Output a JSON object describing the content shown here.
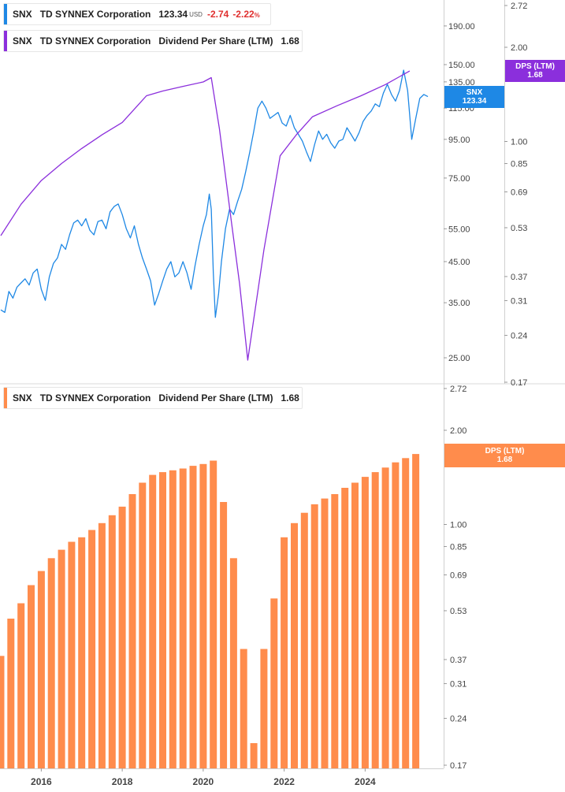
{
  "legend_top_price": {
    "ticker": "SNX",
    "company": "TD SYNNEX Corporation",
    "price": "123.34",
    "currency": "USD",
    "change": "-2.74",
    "change_pct": "-2.22",
    "pct_sign": "%",
    "color": "#1e88e5"
  },
  "legend_top_dps": {
    "ticker": "SNX",
    "company": "TD SYNNEX Corporation",
    "metric": "Dividend Per Share (LTM)",
    "value": "1.68",
    "color": "#8b2fdc"
  },
  "legend_bottom_dps": {
    "ticker": "SNX",
    "company": "TD SYNNEX Corporation",
    "metric": "Dividend Per Share (LTM)",
    "value": "1.68",
    "color": "#ff8c4c"
  },
  "tags": {
    "price_label": "SNX",
    "price_value": "123.34",
    "dps_top_label": "DPS (LTM)",
    "dps_top_value": "1.68",
    "dps_bottom_label": "DPS (LTM)",
    "dps_bottom_value": "1.68"
  },
  "chart_data": [
    {
      "type": "line",
      "scale": "log",
      "price_axis": {
        "ticks": [
          25.0,
          35.0,
          45.0,
          55.0,
          75.0,
          95.0,
          115.0,
          135.0,
          150.0,
          190.0
        ],
        "tick_labels": [
          "25.00",
          "35.00",
          "45.00",
          "55.00",
          "75.00",
          "95.00",
          "115.00",
          "135.00",
          "150.00",
          "190.00"
        ]
      },
      "dps_axis": {
        "ticks": [
          0.17,
          0.24,
          0.31,
          0.37,
          0.53,
          0.69,
          0.85,
          1.0,
          2.0,
          2.72
        ],
        "tick_labels": [
          "0.17",
          "0.24",
          "0.31",
          "0.37",
          "0.53",
          "0.69",
          "0.85",
          "1.00",
          "2.00",
          "2.72"
        ]
      },
      "series": [
        {
          "name": "SNX",
          "color": "#1e88e5",
          "points": [
            [
              2015.0,
              33.5
            ],
            [
              2015.1,
              33.0
            ],
            [
              2015.2,
              37.5
            ],
            [
              2015.3,
              36.0
            ],
            [
              2015.4,
              38.5
            ],
            [
              2015.5,
              39.5
            ],
            [
              2015.6,
              40.5
            ],
            [
              2015.7,
              39.0
            ],
            [
              2015.8,
              42.0
            ],
            [
              2015.9,
              43.0
            ],
            [
              2016.0,
              38.0
            ],
            [
              2016.1,
              35.5
            ],
            [
              2016.2,
              41.0
            ],
            [
              2016.3,
              44.5
            ],
            [
              2016.4,
              46.0
            ],
            [
              2016.5,
              50.0
            ],
            [
              2016.6,
              48.5
            ],
            [
              2016.7,
              53.0
            ],
            [
              2016.8,
              57.0
            ],
            [
              2016.9,
              58.0
            ],
            [
              2017.0,
              56.0
            ],
            [
              2017.1,
              58.5
            ],
            [
              2017.2,
              54.5
            ],
            [
              2017.3,
              53.0
            ],
            [
              2017.4,
              57.5
            ],
            [
              2017.5,
              58.0
            ],
            [
              2017.6,
              55.0
            ],
            [
              2017.7,
              61.0
            ],
            [
              2017.8,
              63.0
            ],
            [
              2017.9,
              64.0
            ],
            [
              2018.0,
              60.0
            ],
            [
              2018.1,
              55.0
            ],
            [
              2018.2,
              52.0
            ],
            [
              2018.3,
              56.0
            ],
            [
              2018.4,
              50.0
            ],
            [
              2018.5,
              46.0
            ],
            [
              2018.6,
              43.0
            ],
            [
              2018.7,
              40.0
            ],
            [
              2018.8,
              34.5
            ],
            [
              2018.9,
              37.0
            ],
            [
              2019.0,
              40.0
            ],
            [
              2019.1,
              43.0
            ],
            [
              2019.2,
              45.0
            ],
            [
              2019.3,
              41.0
            ],
            [
              2019.4,
              42.0
            ],
            [
              2019.5,
              45.0
            ],
            [
              2019.6,
              42.0
            ],
            [
              2019.7,
              38.0
            ],
            [
              2019.8,
              44.0
            ],
            [
              2019.9,
              50.0
            ],
            [
              2020.0,
              56.0
            ],
            [
              2020.08,
              60.0
            ],
            [
              2020.15,
              68.0
            ],
            [
              2020.2,
              62.0
            ],
            [
              2020.25,
              42.0
            ],
            [
              2020.3,
              32.0
            ],
            [
              2020.38,
              37.0
            ],
            [
              2020.45,
              45.0
            ],
            [
              2020.55,
              55.0
            ],
            [
              2020.65,
              62.0
            ],
            [
              2020.75,
              60.0
            ],
            [
              2020.85,
              65.0
            ],
            [
              2020.95,
              70.0
            ],
            [
              2021.05,
              78.0
            ],
            [
              2021.15,
              88.0
            ],
            [
              2021.25,
              100.0
            ],
            [
              2021.35,
              115.0
            ],
            [
              2021.45,
              120.0
            ],
            [
              2021.55,
              115.0
            ],
            [
              2021.65,
              108.0
            ],
            [
              2021.75,
              110.0
            ],
            [
              2021.85,
              112.0
            ],
            [
              2021.95,
              105.0
            ],
            [
              2022.05,
              103.0
            ],
            [
              2022.15,
              110.0
            ],
            [
              2022.25,
              102.0
            ],
            [
              2022.35,
              98.0
            ],
            [
              2022.45,
              94.0
            ],
            [
              2022.55,
              88.0
            ],
            [
              2022.65,
              83.0
            ],
            [
              2022.75,
              92.0
            ],
            [
              2022.85,
              100.0
            ],
            [
              2022.95,
              95.0
            ],
            [
              2023.05,
              98.0
            ],
            [
              2023.15,
              93.0
            ],
            [
              2023.25,
              90.0
            ],
            [
              2023.35,
              94.0
            ],
            [
              2023.45,
              95.0
            ],
            [
              2023.55,
              102.0
            ],
            [
              2023.65,
              98.0
            ],
            [
              2023.75,
              94.0
            ],
            [
              2023.85,
              99.0
            ],
            [
              2023.95,
              106.0
            ],
            [
              2024.05,
              110.0
            ],
            [
              2024.15,
              113.0
            ],
            [
              2024.25,
              118.0
            ],
            [
              2024.35,
              116.0
            ],
            [
              2024.45,
              126.0
            ],
            [
              2024.55,
              133.0
            ],
            [
              2024.65,
              125.0
            ],
            [
              2024.75,
              120.0
            ],
            [
              2024.85,
              128.0
            ],
            [
              2024.95,
              145.0
            ],
            [
              2025.05,
              128.0
            ],
            [
              2025.15,
              95.0
            ],
            [
              2025.25,
              108.0
            ],
            [
              2025.35,
              122.0
            ],
            [
              2025.45,
              125.0
            ],
            [
              2025.55,
              123.34
            ]
          ]
        },
        {
          "name": "DPS (LTM)",
          "color": "#8b2fdc",
          "points": [
            [
              2015.0,
              0.5
            ],
            [
              2015.5,
              0.63
            ],
            [
              2016.0,
              0.75
            ],
            [
              2016.5,
              0.85
            ],
            [
              2017.0,
              0.95
            ],
            [
              2017.5,
              1.05
            ],
            [
              2018.0,
              1.15
            ],
            [
              2018.6,
              1.4
            ],
            [
              2019.0,
              1.45
            ],
            [
              2019.5,
              1.5
            ],
            [
              2020.0,
              1.55
            ],
            [
              2020.2,
              1.6
            ],
            [
              2020.4,
              1.1
            ],
            [
              2020.7,
              0.55
            ],
            [
              2020.9,
              0.35
            ],
            [
              2021.1,
              0.2
            ],
            [
              2021.5,
              0.45
            ],
            [
              2021.9,
              0.9
            ],
            [
              2022.3,
              1.05
            ],
            [
              2022.7,
              1.2
            ],
            [
              2023.3,
              1.3
            ],
            [
              2023.9,
              1.4
            ],
            [
              2024.5,
              1.52
            ],
            [
              2025.1,
              1.68
            ]
          ]
        }
      ]
    },
    {
      "type": "bar",
      "scale": "log",
      "name": "DPS (LTM)",
      "color": "#ff8c4c",
      "axis": {
        "ticks": [
          0.17,
          0.24,
          0.31,
          0.37,
          0.53,
          0.69,
          0.85,
          1.0,
          2.0,
          2.72
        ],
        "tick_labels": [
          "0.17",
          "0.24",
          "0.31",
          "0.37",
          "0.53",
          "0.69",
          "0.85",
          "1.00",
          "2.00",
          "2.72"
        ]
      },
      "x_labels": [
        "2016",
        "2018",
        "2020",
        "2022",
        "2024"
      ],
      "bars": [
        [
          2015.0,
          0.38
        ],
        [
          2015.25,
          0.5
        ],
        [
          2015.5,
          0.56
        ],
        [
          2015.75,
          0.64
        ],
        [
          2016.0,
          0.71
        ],
        [
          2016.25,
          0.78
        ],
        [
          2016.5,
          0.83
        ],
        [
          2016.75,
          0.88
        ],
        [
          2017.0,
          0.91
        ],
        [
          2017.25,
          0.96
        ],
        [
          2017.5,
          1.01
        ],
        [
          2017.75,
          1.07
        ],
        [
          2018.0,
          1.14
        ],
        [
          2018.25,
          1.25
        ],
        [
          2018.5,
          1.36
        ],
        [
          2018.75,
          1.44
        ],
        [
          2019.0,
          1.47
        ],
        [
          2019.25,
          1.49
        ],
        [
          2019.5,
          1.51
        ],
        [
          2019.75,
          1.54
        ],
        [
          2020.0,
          1.56
        ],
        [
          2020.25,
          1.6
        ],
        [
          2020.5,
          1.18
        ],
        [
          2020.75,
          0.78
        ],
        [
          2021.0,
          0.4
        ],
        [
          2021.25,
          0.2
        ],
        [
          2021.5,
          0.4
        ],
        [
          2021.75,
          0.58
        ],
        [
          2022.0,
          0.91
        ],
        [
          2022.25,
          1.01
        ],
        [
          2022.5,
          1.09
        ],
        [
          2022.75,
          1.16
        ],
        [
          2023.0,
          1.21
        ],
        [
          2023.25,
          1.25
        ],
        [
          2023.5,
          1.31
        ],
        [
          2023.75,
          1.36
        ],
        [
          2024.0,
          1.42
        ],
        [
          2024.25,
          1.47
        ],
        [
          2024.5,
          1.52
        ],
        [
          2024.75,
          1.58
        ],
        [
          2025.0,
          1.63
        ],
        [
          2025.25,
          1.68
        ]
      ]
    }
  ]
}
